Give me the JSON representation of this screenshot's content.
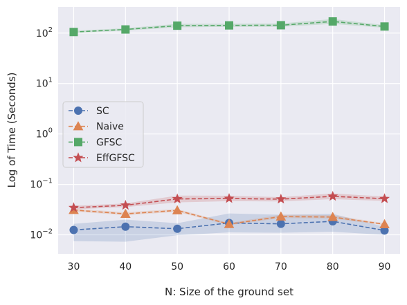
{
  "chart_data": {
    "type": "line",
    "xlabel": "N: Size of the ground set",
    "ylabel": "Log of Time (Seconds)",
    "x": [
      30,
      40,
      50,
      60,
      70,
      80,
      90
    ],
    "xlim": [
      27,
      93
    ],
    "yscale": "log",
    "ylim": [
      0.0042,
      330
    ],
    "x_ticks": [
      30,
      40,
      50,
      60,
      70,
      80,
      90
    ],
    "y_ticks": [
      {
        "value": 0.01,
        "base": "10",
        "exp": "−2"
      },
      {
        "value": 0.1,
        "base": "10",
        "exp": "−1"
      },
      {
        "value": 1,
        "base": "10",
        "exp": "0"
      },
      {
        "value": 10,
        "base": "10",
        "exp": "1"
      },
      {
        "value": 100,
        "base": "10",
        "exp": "2"
      }
    ],
    "grid": true,
    "legend_position": "center-left",
    "series": [
      {
        "name": "SC",
        "color": "#4c72b0",
        "marker": "circle",
        "values": [
          0.0125,
          0.0145,
          0.0132,
          0.0172,
          0.0165,
          0.0185,
          0.0122
        ],
        "band_low": [
          0.0075,
          0.0073,
          0.0098,
          0.0112,
          0.011,
          0.0115,
          0.01
        ],
        "band_high": [
          0.0165,
          0.02,
          0.017,
          0.0265,
          0.025,
          0.026,
          0.0145
        ]
      },
      {
        "name": "Naive",
        "color": "#dd8452",
        "marker": "triangle",
        "values": [
          0.031,
          0.026,
          0.0305,
          0.0163,
          0.023,
          0.0225,
          0.0162
        ],
        "band_low": [
          0.029,
          0.0245,
          0.0285,
          0.0155,
          0.0215,
          0.021,
          0.0155
        ],
        "band_high": [
          0.033,
          0.028,
          0.0325,
          0.0172,
          0.025,
          0.0245,
          0.017
        ]
      },
      {
        "name": "GFSC",
        "color": "#55a868",
        "marker": "square",
        "values": [
          105,
          118,
          140,
          142,
          143,
          170,
          135
        ],
        "band_low": [
          100,
          112,
          130,
          133,
          133,
          152,
          127
        ],
        "band_high": [
          111,
          125,
          152,
          153,
          155,
          190,
          144
        ]
      },
      {
        "name": "EffGFSC",
        "color": "#c44e52",
        "marker": "star",
        "values": [
          0.0345,
          0.0385,
          0.0515,
          0.0525,
          0.051,
          0.058,
          0.052
        ],
        "band_low": [
          0.032,
          0.0355,
          0.044,
          0.0465,
          0.046,
          0.051,
          0.047
        ],
        "band_high": [
          0.0375,
          0.042,
          0.06,
          0.0595,
          0.056,
          0.066,
          0.0575
        ]
      }
    ]
  }
}
